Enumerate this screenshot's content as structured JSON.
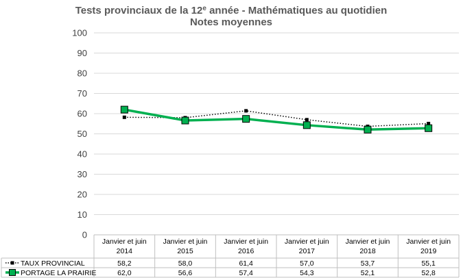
{
  "chart_data": {
    "type": "line",
    "title_line1_prefix": "Tests provinciaux de la 12",
    "title_line1_sup": "e",
    "title_line1_suffix": " année - Mathématiques au quotidien",
    "title_line2": "Notes moyennes",
    "ylim": [
      0,
      100
    ],
    "yticks": [
      0,
      10,
      20,
      30,
      40,
      50,
      60,
      70,
      80,
      90,
      100
    ],
    "grid": true,
    "categories": [
      [
        "Janvier et juin",
        "2014"
      ],
      [
        "Janvier et juin",
        "2015"
      ],
      [
        "Janvier et juin",
        "2016"
      ],
      [
        "Janvier et juin",
        "2017"
      ],
      [
        "Janvier et juin",
        "2018"
      ],
      [
        "Janvier et juin",
        "2019"
      ]
    ],
    "legend_placement": "bottom (data table)",
    "series": [
      {
        "name": "TAUX PROVINCIAL",
        "values": [
          58.2,
          58.0,
          61.4,
          57.0,
          53.7,
          55.1
        ],
        "labels": [
          "58,2",
          "58,0",
          "61,4",
          "57,0",
          "53,7",
          "55,1"
        ],
        "color": "#000000",
        "style": "dotted",
        "marker": "small-square"
      },
      {
        "name": "PORTAGE LA PRAIRIE",
        "values": [
          62.0,
          56.6,
          57.4,
          54.3,
          52.1,
          52.8
        ],
        "labels": [
          "62,0",
          "56,6",
          "57,4",
          "54,3",
          "52,1",
          "52,8"
        ],
        "color": "#00B050",
        "style": "solid",
        "marker": "large-square"
      }
    ]
  }
}
